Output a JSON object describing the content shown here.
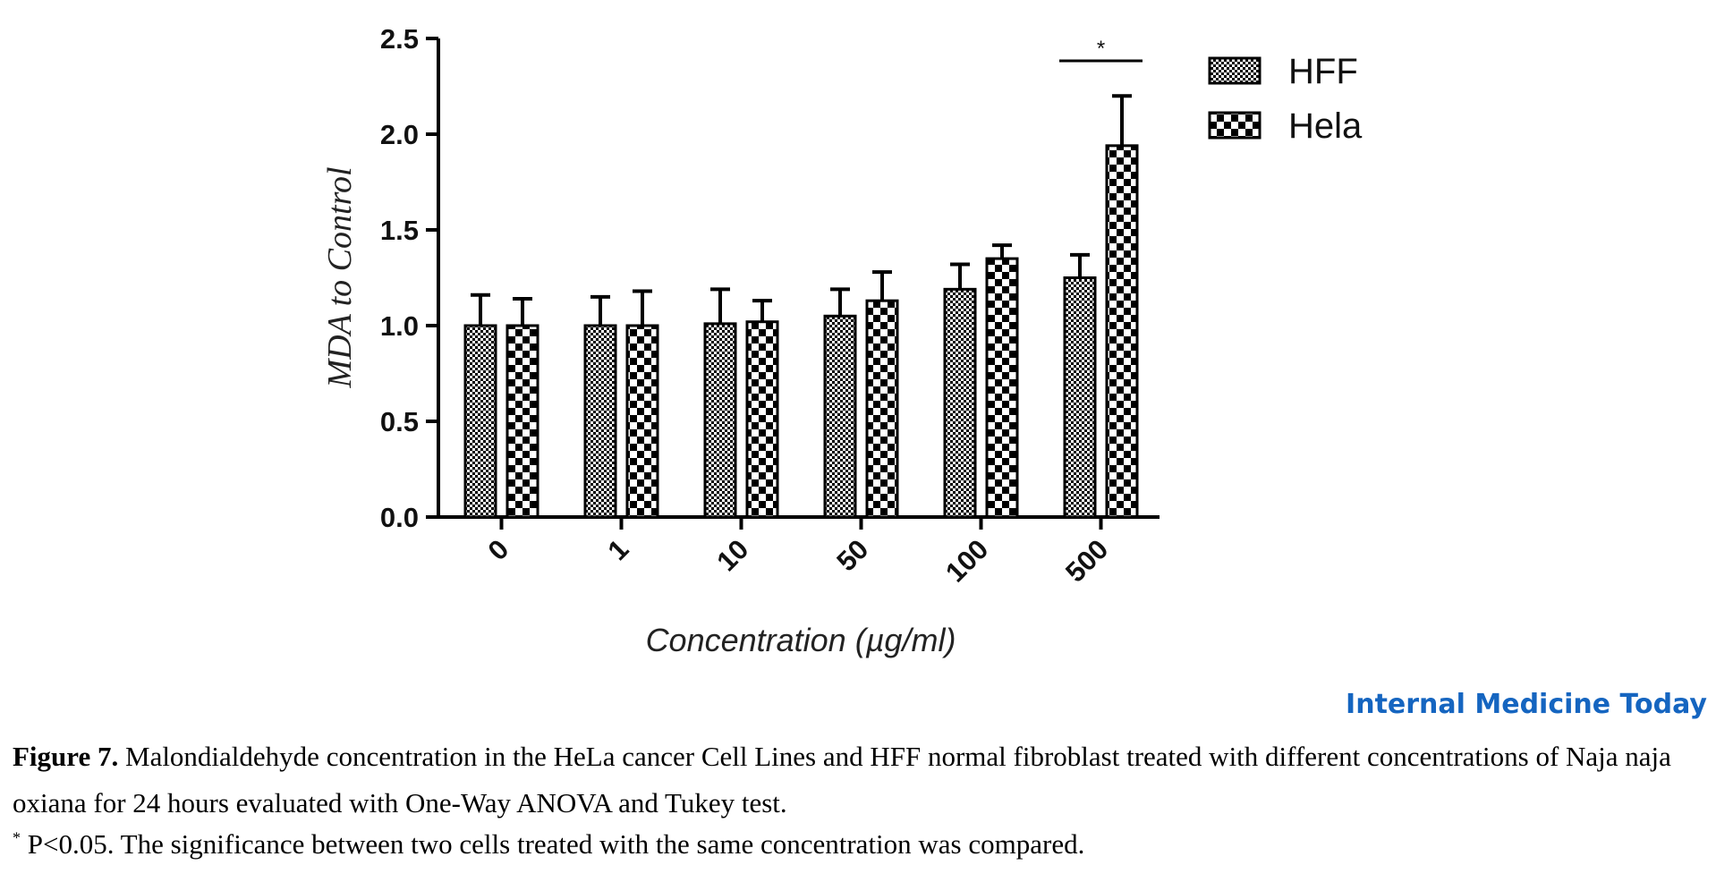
{
  "chart_data": {
    "type": "bar",
    "ylabel": "MDA to Control",
    "xlabel": "Concentration (µg/ml)",
    "categories": [
      "0",
      "1",
      "10",
      "50",
      "100",
      "500"
    ],
    "ylim": [
      0,
      2.5
    ],
    "yticks": [
      "0.0",
      "0.5",
      "1.0",
      "1.5",
      "2.0",
      "2.5"
    ],
    "series": [
      {
        "name": "HFF",
        "pattern": "fine-checker",
        "values": [
          1.0,
          1.0,
          1.01,
          1.05,
          1.19,
          1.25
        ],
        "errors": [
          0.16,
          0.15,
          0.18,
          0.14,
          0.13,
          0.12
        ]
      },
      {
        "name": "Hela",
        "pattern": "coarse-checker",
        "values": [
          1.0,
          1.0,
          1.02,
          1.13,
          1.35,
          1.94
        ],
        "errors": [
          0.14,
          0.18,
          0.11,
          0.15,
          0.07,
          0.26
        ]
      }
    ],
    "significance": [
      {
        "category": "500",
        "label": "*"
      }
    ],
    "legend_position": "top-right",
    "grid": false,
    "colors": {
      "bar_fill": "#000000",
      "bar_bg": "#ffffff",
      "axis": "#000000"
    }
  },
  "brand": {
    "text": "Internal Medicine Today",
    "color": "#1565c0"
  },
  "caption": {
    "label": "Figure 7.",
    "text": " Malondialdehyde concentration in the HeLa cancer Cell Lines and HFF normal fibroblast treated with different concentrations of Naja naja oxiana for 24 hours evaluated with One-Way ANOVA and Tukey test."
  },
  "note": {
    "marker": "*",
    "text": " P<0.05. The significance between two cells treated with the same concentration was compared."
  }
}
